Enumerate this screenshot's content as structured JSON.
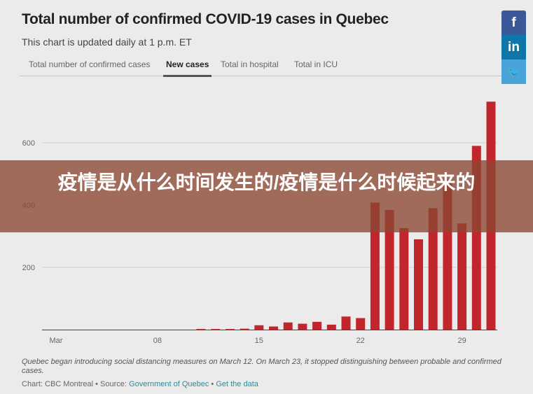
{
  "header": {
    "title": "Total number of confirmed COVID-19 cases in Quebec",
    "subtitle": "This chart is updated daily at 1 p.m. ET"
  },
  "tabs": [
    {
      "label": "Total number of confirmed cases"
    },
    {
      "label": "New cases",
      "active": true
    },
    {
      "label": "Total in hospital"
    },
    {
      "label": "Total in ICU"
    }
  ],
  "social": [
    {
      "icon": "facebook-icon",
      "glyph": "f",
      "color": "#3b5998"
    },
    {
      "icon": "linkedin-icon",
      "glyph": "in",
      "color": "#0e76a8"
    },
    {
      "icon": "twitter-icon",
      "glyph": "🐦",
      "color": "#4aa3d8"
    }
  ],
  "overlay": {
    "text": "疫情是从什么时间发生的/疫情是什么时候起来的"
  },
  "chart_data": {
    "type": "bar",
    "title": "Total number of confirmed COVID-19 cases in Quebec",
    "x": [
      1,
      2,
      3,
      4,
      5,
      6,
      7,
      8,
      9,
      10,
      11,
      12,
      13,
      14,
      15,
      16,
      17,
      18,
      19,
      20,
      21,
      22,
      23,
      24,
      25,
      26,
      27,
      28,
      29,
      30,
      31
    ],
    "values": [
      0,
      0,
      0,
      0,
      0,
      0,
      0,
      0,
      0,
      0,
      2,
      2,
      2,
      3,
      14,
      10,
      23,
      19,
      25,
      16,
      42,
      37,
      408,
      384,
      326,
      290,
      390,
      480,
      341,
      590,
      732
    ],
    "xticks": [
      {
        "day": 1,
        "label": "Mar"
      },
      {
        "day": 8,
        "label": "08"
      },
      {
        "day": 15,
        "label": "15"
      },
      {
        "day": 22,
        "label": "22"
      },
      {
        "day": 29,
        "label": "29"
      }
    ],
    "yticks": [
      200,
      400,
      600
    ],
    "ylim": [
      0,
      750
    ],
    "grid": true,
    "bar_color": "#c0262b"
  },
  "footer": {
    "note": "Quebec began introducing social distancing measures on March 12. On March 23, it stopped distinguishing between probable and confirmed cases.",
    "credit_prefix": "Chart: CBC Montreal • Source: ",
    "source_link": "Government of Quebec",
    "sep": " • ",
    "data_link": "Get the data"
  }
}
